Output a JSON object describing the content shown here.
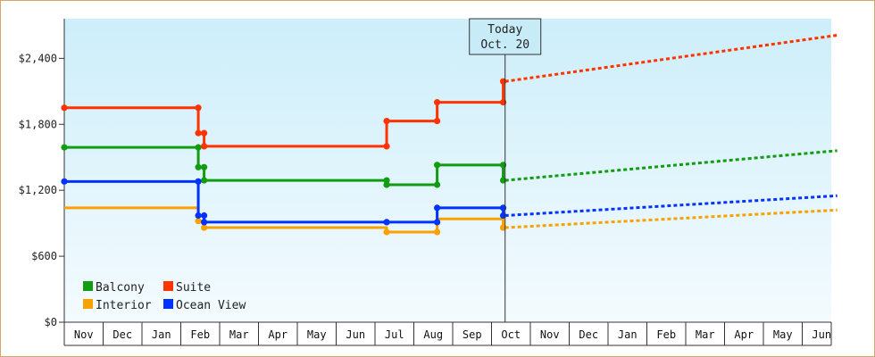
{
  "chart_data": {
    "type": "line",
    "y_tick_labels": [
      "$0",
      "$600",
      "$1,200",
      "$1,800",
      "$2,400"
    ],
    "y_tick_values": [
      0,
      600,
      1200,
      1800,
      2400
    ],
    "ylim": [
      0,
      2760
    ],
    "month_labels": [
      "Nov",
      "Dec",
      "Jan",
      "Feb",
      "Mar",
      "Apr",
      "May",
      "Jun",
      "Jul",
      "Aug",
      "Sep",
      "Oct",
      "Nov",
      "Dec",
      "Jan",
      "Feb",
      "Mar",
      "Apr",
      "May",
      "Jun"
    ],
    "today_marker": {
      "line1": "Today",
      "line2": "Oct. 20",
      "x_month": 11.35
    },
    "grid": false,
    "legend_placement": "bottom-left",
    "series": [
      {
        "name": "Balcony",
        "color": "#119c11",
        "history": [
          [
            0,
            1590
          ],
          [
            3.45,
            1590
          ],
          [
            3.45,
            1410
          ],
          [
            3.6,
            1410
          ],
          [
            3.6,
            1290
          ],
          [
            8.3,
            1290
          ],
          [
            8.3,
            1250
          ],
          [
            9.6,
            1250
          ],
          [
            9.6,
            1430
          ],
          [
            11.3,
            1430
          ],
          [
            11.3,
            1290
          ]
        ],
        "forecast": [
          [
            11.35,
            1290
          ],
          [
            19.9,
            1560
          ]
        ],
        "markers": [
          [
            0,
            1590
          ],
          [
            3.45,
            1590
          ],
          [
            3.45,
            1410
          ],
          [
            3.6,
            1410
          ],
          [
            3.6,
            1290
          ],
          [
            8.3,
            1290
          ],
          [
            8.3,
            1250
          ],
          [
            9.6,
            1250
          ],
          [
            9.6,
            1430
          ],
          [
            11.3,
            1430
          ],
          [
            11.3,
            1290
          ]
        ]
      },
      {
        "name": "Suite",
        "color": "#ff3300",
        "history": [
          [
            0,
            1950
          ],
          [
            3.45,
            1950
          ],
          [
            3.45,
            1720
          ],
          [
            3.6,
            1720
          ],
          [
            3.6,
            1600
          ],
          [
            8.3,
            1600
          ],
          [
            8.3,
            1830
          ],
          [
            9.6,
            1830
          ],
          [
            9.6,
            2000
          ],
          [
            11.3,
            2000
          ],
          [
            11.3,
            2190
          ]
        ],
        "forecast": [
          [
            11.35,
            2190
          ],
          [
            19.9,
            2610
          ]
        ],
        "markers": [
          [
            0,
            1950
          ],
          [
            3.45,
            1950
          ],
          [
            3.45,
            1720
          ],
          [
            3.6,
            1720
          ],
          [
            3.6,
            1600
          ],
          [
            8.3,
            1600
          ],
          [
            8.3,
            1830
          ],
          [
            9.6,
            1830
          ],
          [
            9.6,
            2000
          ],
          [
            11.3,
            2000
          ],
          [
            11.3,
            2190
          ]
        ]
      },
      {
        "name": "Interior",
        "color": "#f9a100",
        "history": [
          [
            0,
            1040
          ],
          [
            3.45,
            1040
          ],
          [
            3.45,
            920
          ],
          [
            3.6,
            920
          ],
          [
            3.6,
            860
          ],
          [
            8.3,
            860
          ],
          [
            8.3,
            820
          ],
          [
            9.6,
            820
          ],
          [
            9.6,
            940
          ],
          [
            11.3,
            940
          ],
          [
            11.3,
            860
          ]
        ],
        "forecast": [
          [
            11.35,
            860
          ],
          [
            19.9,
            1020
          ]
        ],
        "markers": [
          [
            3.45,
            920
          ],
          [
            3.6,
            860
          ],
          [
            8.3,
            820
          ],
          [
            9.6,
            820
          ],
          [
            11.3,
            860
          ]
        ]
      },
      {
        "name": "Ocean View",
        "color": "#0033ff",
        "history": [
          [
            0,
            1280
          ],
          [
            3.45,
            1280
          ],
          [
            3.45,
            970
          ],
          [
            3.6,
            970
          ],
          [
            3.6,
            910
          ],
          [
            8.3,
            910
          ],
          [
            8.3,
            910
          ],
          [
            9.6,
            910
          ],
          [
            9.6,
            1040
          ],
          [
            11.3,
            1040
          ],
          [
            11.3,
            970
          ]
        ],
        "forecast": [
          [
            11.35,
            970
          ],
          [
            19.9,
            1150
          ]
        ],
        "markers": [
          [
            0,
            1280
          ],
          [
            3.45,
            1280
          ],
          [
            3.45,
            970
          ],
          [
            3.6,
            970
          ],
          [
            3.6,
            910
          ],
          [
            8.3,
            910
          ],
          [
            9.6,
            910
          ],
          [
            9.6,
            1040
          ],
          [
            11.3,
            1040
          ],
          [
            11.3,
            970
          ]
        ]
      }
    ],
    "legend": [
      {
        "name": "Balcony",
        "color": "#119c11"
      },
      {
        "name": "Suite",
        "color": "#ff3300"
      },
      {
        "name": "Interior",
        "color": "#f9a100"
      },
      {
        "name": "Ocean View",
        "color": "#0033ff"
      }
    ]
  }
}
